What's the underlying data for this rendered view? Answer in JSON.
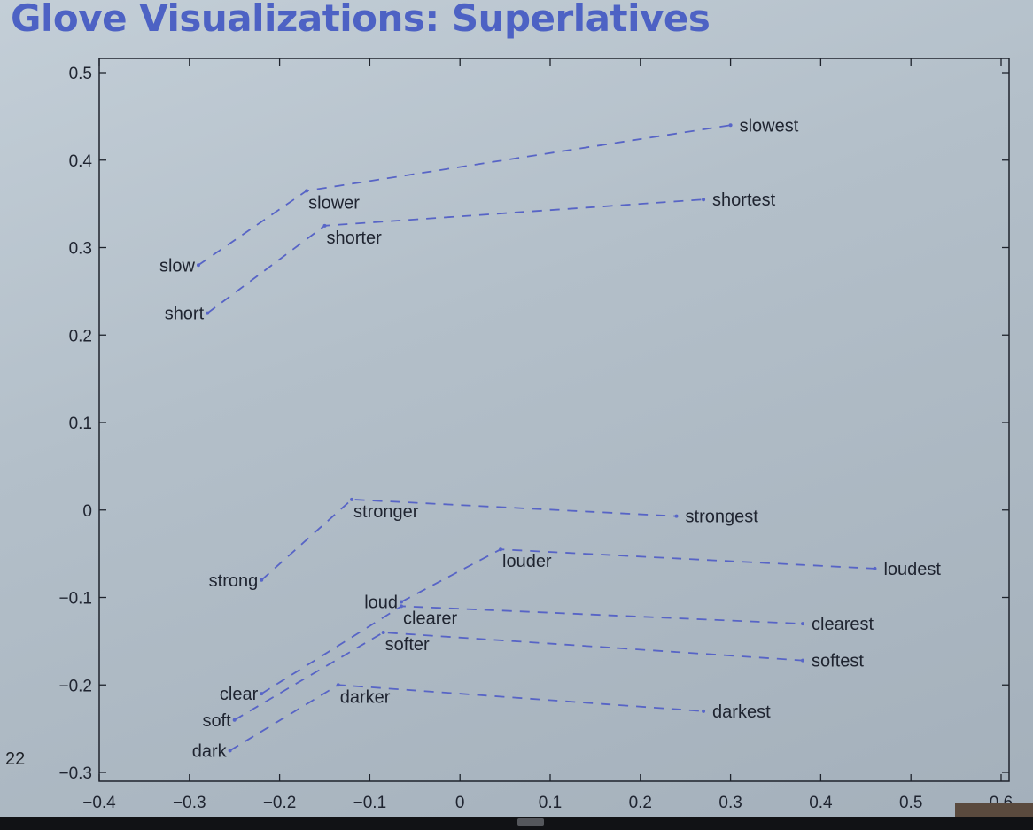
{
  "slide": {
    "title": "Glove Visualizations: Superlatives",
    "page_number": "22"
  },
  "colors": {
    "title": "#4d62c4",
    "series_line": "#5764c6",
    "background": "#b7c3cd",
    "text": "#1f2430"
  },
  "chart_data": {
    "type": "scatter",
    "title": "",
    "xlabel": "",
    "ylabel": "",
    "xlim": [
      -0.4,
      0.6
    ],
    "ylim": [
      -0.3,
      0.5
    ],
    "xticks": [
      -0.4,
      -0.3,
      -0.2,
      -0.1,
      0,
      0.1,
      0.2,
      0.3,
      0.4,
      0.5,
      0.6
    ],
    "xtick_labels": [
      "−0.4",
      "−0.3",
      "−0.2",
      "−0.1",
      "0",
      "0.1",
      "0.2",
      "0.3",
      "0.4",
      "0.5",
      "0.6"
    ],
    "yticks": [
      -0.3,
      -0.2,
      -0.1,
      0,
      0.1,
      0.2,
      0.3,
      0.4,
      0.5
    ],
    "ytick_labels": [
      "−0.3",
      "−0.2",
      "−0.1",
      "0",
      "0.1",
      "0.2",
      "0.3",
      "0.4",
      "0.5"
    ],
    "grid": false,
    "connection_style": "dashed",
    "groups": [
      {
        "base": {
          "word": "slow",
          "x": -0.29,
          "y": 0.28
        },
        "comparative": {
          "word": "slower",
          "x": -0.17,
          "y": 0.365
        },
        "superlative": {
          "word": "slowest",
          "x": 0.3,
          "y": 0.44
        }
      },
      {
        "base": {
          "word": "short",
          "x": -0.28,
          "y": 0.225
        },
        "comparative": {
          "word": "shorter",
          "x": -0.15,
          "y": 0.325
        },
        "superlative": {
          "word": "shortest",
          "x": 0.27,
          "y": 0.355
        }
      },
      {
        "base": {
          "word": "strong",
          "x": -0.22,
          "y": -0.08
        },
        "comparative": {
          "word": "stronger",
          "x": -0.12,
          "y": 0.012
        },
        "superlative": {
          "word": "strongest",
          "x": 0.24,
          "y": -0.007
        }
      },
      {
        "base": {
          "word": "loud",
          "x": -0.065,
          "y": -0.105
        },
        "comparative": {
          "word": "louder",
          "x": 0.045,
          "y": -0.045
        },
        "superlative": {
          "word": "loudest",
          "x": 0.46,
          "y": -0.067
        }
      },
      {
        "base": {
          "word": "clear",
          "x": -0.22,
          "y": -0.21
        },
        "comparative": {
          "word": "clearer",
          "x": -0.065,
          "y": -0.11
        },
        "superlative": {
          "word": "clearest",
          "x": 0.38,
          "y": -0.13
        }
      },
      {
        "base": {
          "word": "soft",
          "x": -0.25,
          "y": -0.24
        },
        "comparative": {
          "word": "softer",
          "x": -0.085,
          "y": -0.14
        },
        "superlative": {
          "word": "softest",
          "x": 0.38,
          "y": -0.172
        }
      },
      {
        "base": {
          "word": "dark",
          "x": -0.255,
          "y": -0.275
        },
        "comparative": {
          "word": "darker",
          "x": -0.135,
          "y": -0.2
        },
        "superlative": {
          "word": "darkest",
          "x": 0.27,
          "y": -0.23
        }
      }
    ]
  }
}
